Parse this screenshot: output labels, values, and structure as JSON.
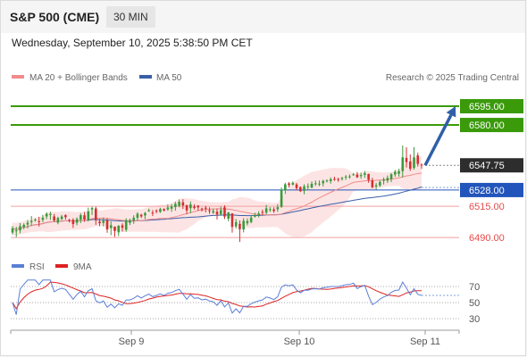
{
  "header": {
    "title": "S&P 500 (CME)",
    "timeframe": "30 MIN"
  },
  "timestamp": "Wednesday, September 10, 2025 5:38:50 PM CET",
  "legend": {
    "ma20": "MA 20 + Bollinger Bands",
    "ma50": "MA 50",
    "credit": "Research © 2025 Trading Central",
    "rsi": "RSI",
    "rsi_ma": "9MA"
  },
  "colors": {
    "resistance": "#3a9a0a",
    "current": "#2d2d2d",
    "pivot": "#2255bb",
    "support": "#e64b4b",
    "bollinger_fill": "#fde1e1",
    "ma20": "#f28b8b",
    "ma50": "#3a5fa8",
    "up_candle": "#3a9a3a",
    "down_candle": "#d23030",
    "arrow": "#2f5fa8",
    "rsi_line": "#5b7fd6",
    "rsi_ma_line": "#dd2222"
  },
  "chart_data": {
    "type": "candlestick",
    "price_range": [
      6478,
      6610
    ],
    "levels": [
      {
        "value": 6595.0,
        "label": "6595.00",
        "kind": "resistance"
      },
      {
        "value": 6580.0,
        "label": "6580.00",
        "kind": "resistance"
      },
      {
        "value": 6547.75,
        "label": "6547.75",
        "kind": "current"
      },
      {
        "value": 6528.0,
        "label": "6528.00",
        "kind": "pivot"
      },
      {
        "value": 6515.0,
        "label": "6515.00",
        "kind": "support"
      },
      {
        "value": 6490.0,
        "label": "6490.00",
        "kind": "support"
      }
    ],
    "candles": [
      [
        6494.0,
        6497.4,
        6492.5,
        6499.2
      ],
      [
        6495.4,
        6495.7,
        6490.4,
        6498.6
      ],
      [
        6495.7,
        6499.1,
        6493.4,
        6501.6
      ],
      [
        6498.3,
        6500.2,
        6496.7,
        6501.4
      ],
      [
        6500.4,
        6501.9,
        6497.3,
        6504.1
      ],
      [
        6502.3,
        6503.3,
        6499.5,
        6507.2
      ],
      [
        6504.2,
        6504.3,
        6502.8,
        6505.4
      ],
      [
        6503.1,
        6502.7,
        6498.8,
        6506.6
      ],
      [
        6504.2,
        6505.8,
        6502.3,
        6508.1
      ],
      [
        6506.9,
        6509.0,
        6504.7,
        6510.2
      ],
      [
        6508.0,
        6508.9,
        6504.1,
        6510.6
      ],
      [
        6506.9,
        6503.7,
        6502.5,
        6508.9
      ],
      [
        6502.0,
        6505.7,
        6500.6,
        6506.7
      ],
      [
        6504.8,
        6506.9,
        6504.0,
        6508.1
      ],
      [
        6507.9,
        6506.3,
        6504.4,
        6508.6
      ],
      [
        6504.1,
        6503.8,
        6502.0,
        6505.0
      ],
      [
        6504.2,
        6500.8,
        6497.7,
        6505.5
      ],
      [
        6501.8,
        6504.8,
        6499.8,
        6506.2
      ],
      [
        6504.4,
        6507.9,
        6501.6,
        6509.4
      ],
      [
        6507.8,
        6504.4,
        6502.6,
        6510.5
      ],
      [
        6504.1,
        6510.9,
        6502.9,
        6513.9
      ],
      [
        6512.4,
        6513.6,
        6508.0,
        6514.7
      ],
      [
        6513.3,
        6503.8,
        6500.1,
        6514.6
      ],
      [
        6502.7,
        6501.5,
        6499.1,
        6505.0
      ],
      [
        6501.7,
        6503.5,
        6499.0,
        6505.9
      ],
      [
        6503.7,
        6496.5,
        6493.8,
        6505.5
      ],
      [
        6497.7,
        6499.8,
        6491.9,
        6502.9
      ],
      [
        6498.7,
        6495.2,
        6490.6,
        6499.0
      ],
      [
        6494.2,
        6499.5,
        6491.2,
        6499.9
      ],
      [
        6499.8,
        6497.8,
        6494.7,
        6501.4
      ],
      [
        6496.2,
        6503.8,
        6494.6,
        6505.4
      ],
      [
        6501.8,
        6503.8,
        6500.0,
        6505.2
      ],
      [
        6503.8,
        6505.8,
        6501.0,
        6507.8
      ],
      [
        6505.8,
        6509.0,
        6503.8,
        6510.2
      ],
      [
        6508.2,
        6506.9,
        6505.6,
        6509.1
      ],
      [
        6507.7,
        6509.6,
        6504.6,
        6510.5
      ],
      [
        6511.7,
        6511.8,
        6510.6,
        6513.1
      ],
      [
        6510.0,
        6509.6,
        6507.2,
        6512.0
      ],
      [
        6511.7,
        6510.9,
        6509.3,
        6512.5
      ],
      [
        6510.5,
        6512.8,
        6509.7,
        6513.8
      ],
      [
        6512.8,
        6511.6,
        6510.9,
        6513.4
      ],
      [
        6512.5,
        6514.0,
        6511.4,
        6516.5
      ],
      [
        6513.1,
        6514.9,
        6510.6,
        6516.7
      ],
      [
        6514.4,
        6517.0,
        6511.5,
        6518.6
      ],
      [
        6515.3,
        6518.6,
        6514.2,
        6520.5
      ],
      [
        6518.2,
        6515.6,
        6512.8,
        6520.7
      ],
      [
        6515.9,
        6511.7,
        6508.8,
        6516.2
      ],
      [
        6513.5,
        6516.5,
        6509.5,
        6518.8
      ],
      [
        6514.7,
        6513.6,
        6512.4,
        6516.6
      ],
      [
        6515.6,
        6514.1,
        6511.4,
        6515.8
      ],
      [
        6513.2,
        6512.5,
        6510.8,
        6513.9
      ],
      [
        6513.9,
        6513.1,
        6510.1,
        6515.3
      ],
      [
        6511.8,
        6511.7,
        6509.0,
        6514.2
      ],
      [
        6510.0,
        6511.2,
        6508.9,
        6513.2
      ],
      [
        6510.7,
        6508.5,
        6504.5,
        6513.3
      ],
      [
        6508.8,
        6511.9,
        6507.4,
        6514.8
      ],
      [
        6514.2,
        6506.8,
        6504.8,
        6515.8
      ],
      [
        6505.1,
        6510.1,
        6503.0,
        6510.4
      ],
      [
        6509.3,
        6498.5,
        6493.9,
        6509.5
      ],
      [
        6498.9,
        6502.4,
        6497.3,
        6504.9
      ],
      [
        6500.9,
        6496.7,
        6486.5,
        6503.7
      ],
      [
        6496.5,
        6503.4,
        6494.1,
        6505.6
      ],
      [
        6501.4,
        6503.2,
        6499.7,
        6505.4
      ],
      [
        6502.4,
        6506.0,
        6501.4,
        6507.7
      ],
      [
        6506.8,
        6507.8,
        6506.0,
        6509.8
      ],
      [
        6508.0,
        6509.2,
        6506.1,
        6511.0
      ],
      [
        6510.5,
        6510.3,
        6508.1,
        6512.4
      ],
      [
        6509.9,
        6513.4,
        6508.6,
        6516.1
      ],
      [
        6511.9,
        6512.6,
        6510.5,
        6514.3
      ],
      [
        6512.5,
        6511.2,
        6509.7,
        6514.2
      ],
      [
        6512.6,
        6514.3,
        6510.5,
        6516.6
      ],
      [
        6514.5,
        6528.3,
        6513.8,
        6530.0
      ],
      [
        6527.7,
        6532.6,
        6524.9,
        6533.8
      ],
      [
        6533.3,
        6531.9,
        6530.1,
        6534.4
      ],
      [
        6532.3,
        6533.8,
        6531.7,
        6534.9
      ],
      [
        6532.5,
        6529.5,
        6527.7,
        6533.7
      ],
      [
        6530.3,
        6527.1,
        6526.4,
        6531.0
      ],
      [
        6527.4,
        6530.9,
        6524.6,
        6532.6
      ],
      [
        6531.0,
        6531.1,
        6527.7,
        6533.3
      ],
      [
        6530.0,
        6533.0,
        6529.4,
        6534.9
      ],
      [
        6533.3,
        6533.4,
        6531.3,
        6535.6
      ],
      [
        6532.9,
        6533.1,
        6531.1,
        6535.6
      ],
      [
        6533.4,
        6535.2,
        6530.9,
        6536.3
      ],
      [
        6535.0,
        6535.6,
        6534.1,
        6536.5
      ],
      [
        6535.1,
        6536.6,
        6533.1,
        6538.1
      ],
      [
        6536.9,
        6536.7,
        6535.4,
        6538.6
      ],
      [
        6536.8,
        6536.7,
        6534.6,
        6537.8
      ],
      [
        6536.8,
        6537.6,
        6535.6,
        6538.6
      ],
      [
        6538.2,
        6538.7,
        6536.1,
        6540.0
      ],
      [
        6538.9,
        6538.9,
        6537.1,
        6540.4
      ],
      [
        6540.0,
        6540.5,
        6539.5,
        6541.7
      ],
      [
        6540.4,
        6538.2,
        6537.6,
        6542.4
      ],
      [
        6539.1,
        6540.0,
        6537.0,
        6541.9
      ],
      [
        6540.1,
        6541.4,
        6537.7,
        6543.2
      ],
      [
        6540.8,
        6536.1,
        6533.8,
        6541.1
      ],
      [
        6535.7,
        6530.2,
        6529.3,
        6537.8
      ],
      [
        6530.8,
        6531.8,
        6528.3,
        6533.8
      ],
      [
        6531.6,
        6534.5,
        6530.4,
        6535.9
      ],
      [
        6535.4,
        6536.3,
        6532.4,
        6538.1
      ],
      [
        6535.5,
        6537.6,
        6533.7,
        6539.6
      ],
      [
        6536.7,
        6540.6,
        6534.3,
        6541.6
      ],
      [
        6540.4,
        6542.6,
        6538.6,
        6544.1
      ],
      [
        6541.0,
        6543.0,
        6538.7,
        6545.0
      ],
      [
        6543.1,
        6554.1,
        6538.0,
        6563.6
      ],
      [
        6553.7,
        6550.3,
        6546.0,
        6562.2
      ],
      [
        6550.9,
        6545.0,
        6543.3,
        6556.5
      ],
      [
        6545.7,
        6554.1,
        6544.3,
        6562.3
      ],
      [
        6555.7,
        6548.9,
        6546.8,
        6557.8
      ],
      [
        6548.3,
        6547.8,
        6544.9,
        6549.3
      ]
    ],
    "moving_averages": [
      {
        "name": "MA 20",
        "band": "Bollinger Bands"
      },
      {
        "name": "MA 50"
      }
    ],
    "x_labels": [
      "Sep 9",
      "Sep 10",
      "Sep 11"
    ],
    "rsi_panel": {
      "y_labels": [
        "70",
        "50",
        "30"
      ],
      "levels": [
        70,
        50,
        30
      ],
      "series": [
        {
          "name": "RSI",
          "color_key": "rsi_line"
        },
        {
          "name": "9MA",
          "color_key": "rsi_ma_line"
        }
      ]
    },
    "forecast_arrow": {
      "from": 6547.75,
      "to": 6595.0
    }
  }
}
